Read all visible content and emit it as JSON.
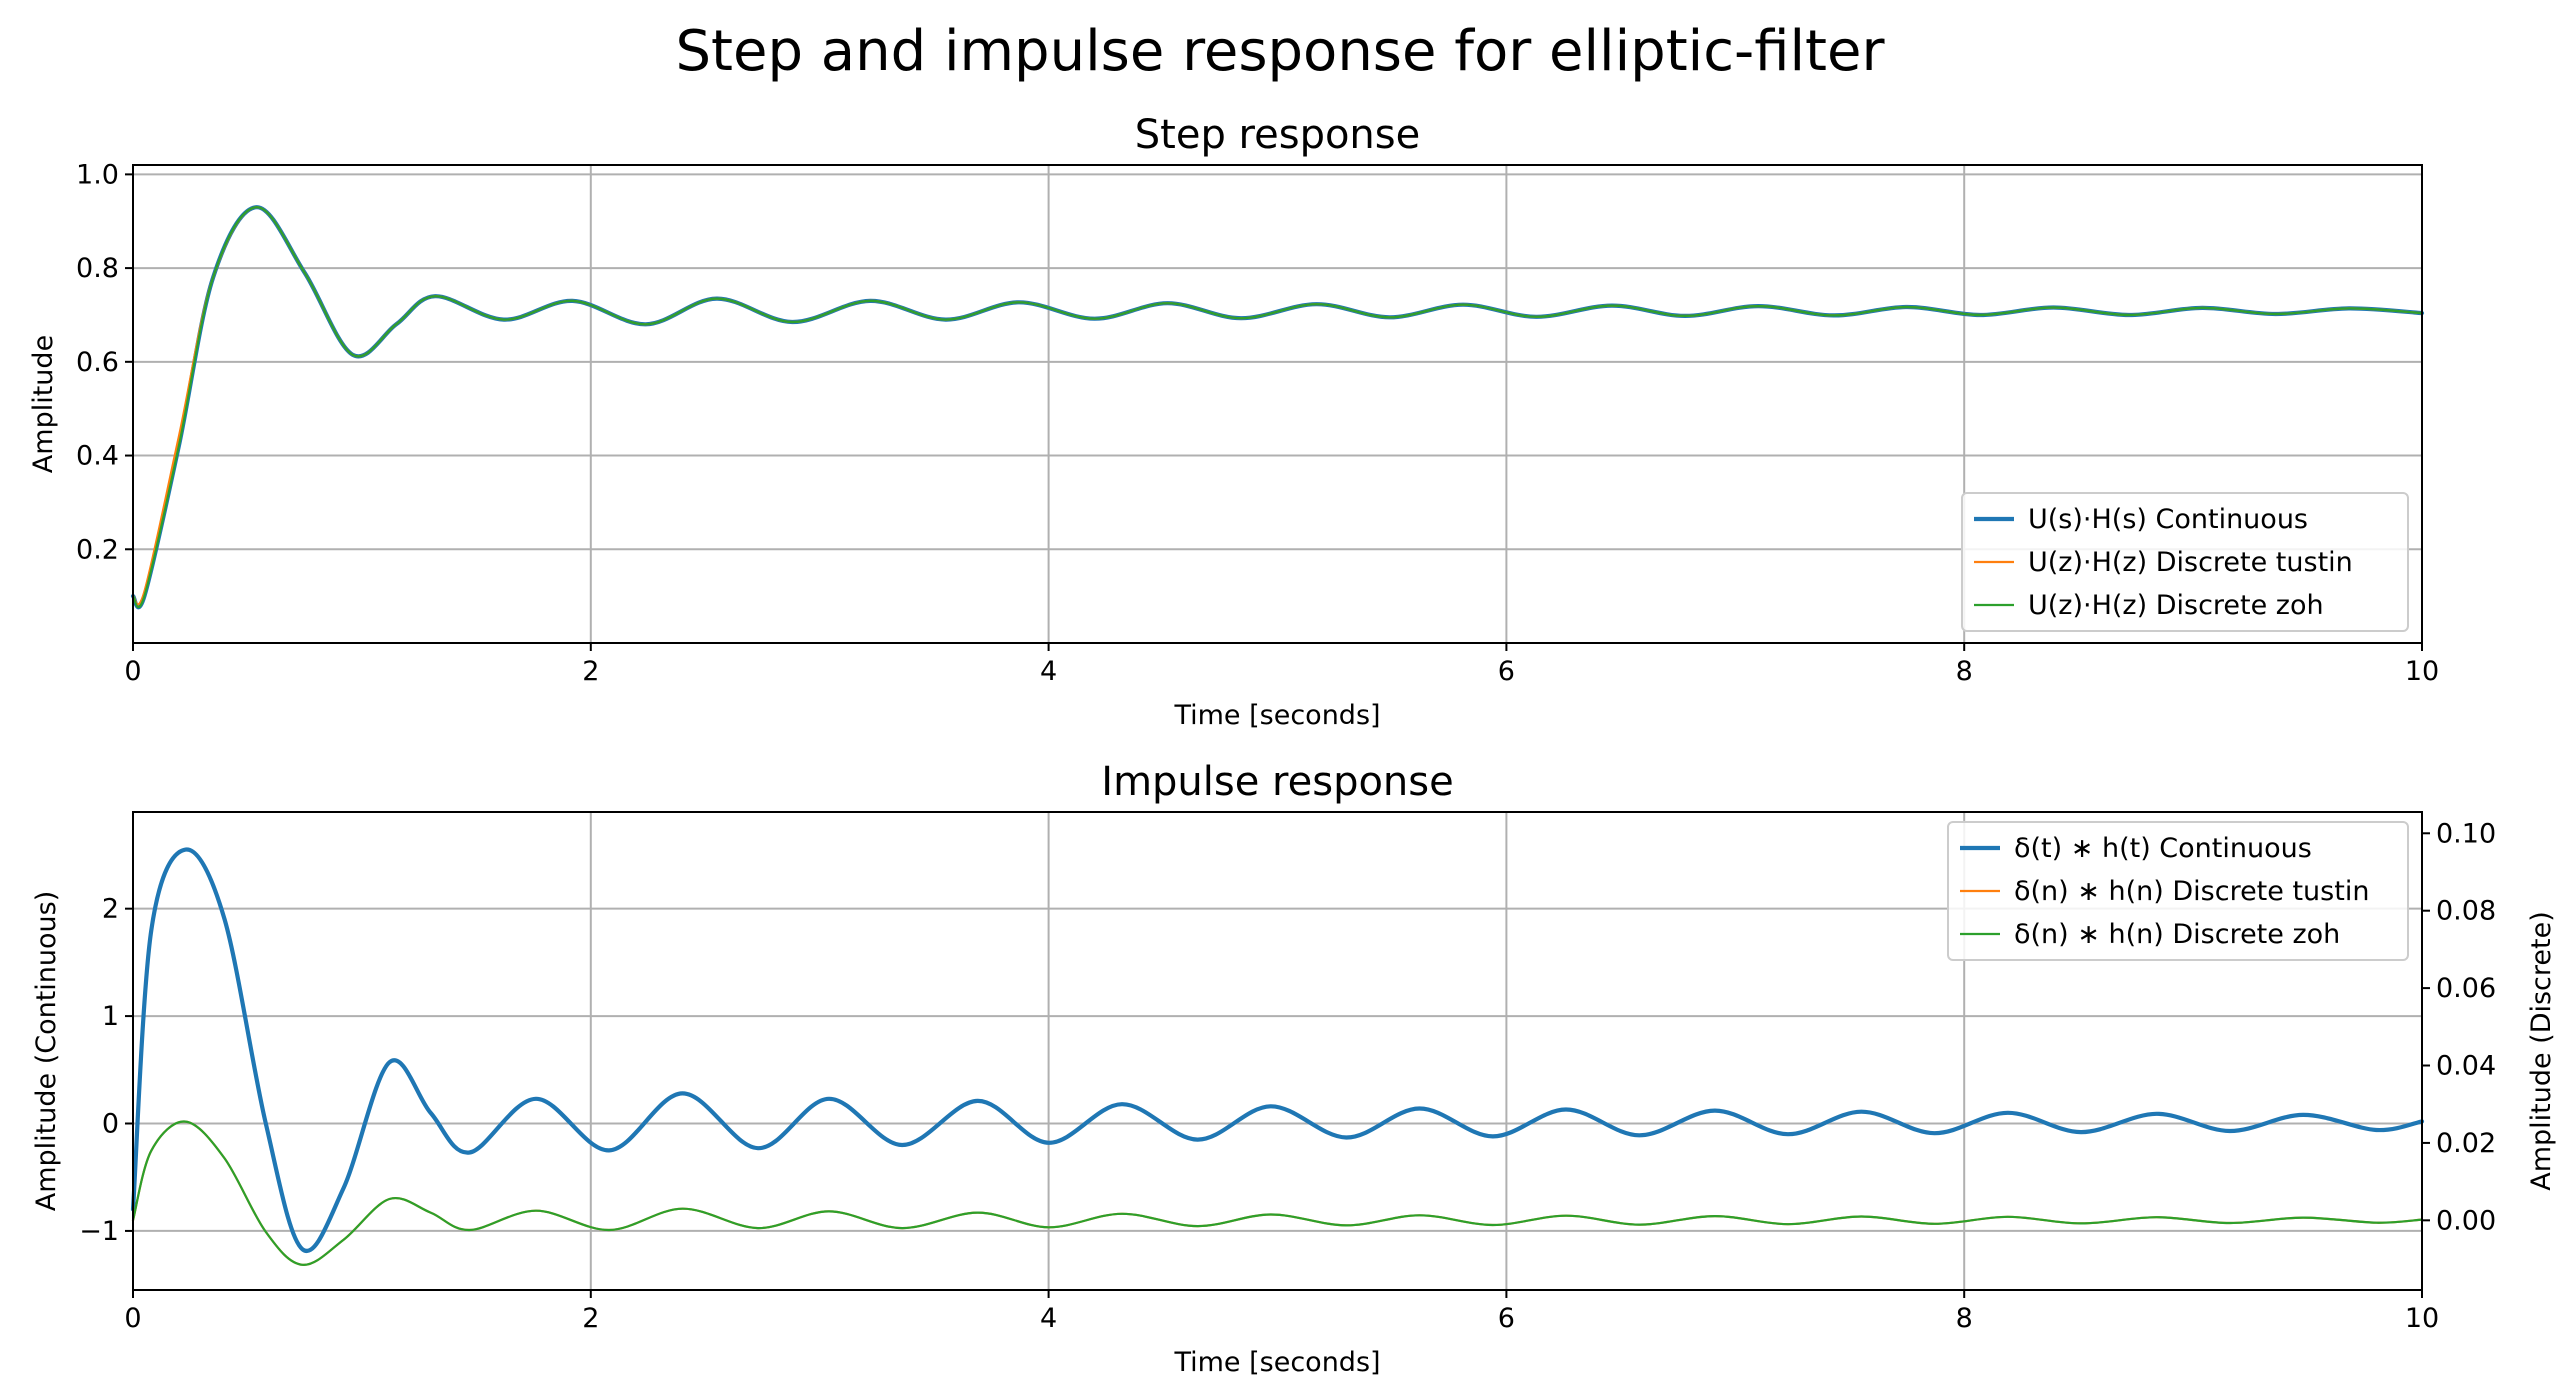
{
  "figure_title": "Step and impulse response for elliptic-filter",
  "colors": {
    "continuous": "#1f77b4",
    "tustin": "#ff7f0e",
    "zoh": "#2ca02c",
    "grid": "#b0b0b0"
  },
  "chart_data": [
    {
      "type": "line",
      "title": "Step response",
      "xlabel": "Time [seconds]",
      "ylabel": "Amplitude",
      "xlim": [
        0,
        10
      ],
      "ylim": [
        0.0,
        1.02
      ],
      "xticks": [
        0,
        2,
        4,
        6,
        8,
        10
      ],
      "yticks": [
        0.2,
        0.4,
        0.6,
        0.8,
        1.0
      ],
      "xtick_labels": [
        "0",
        "2",
        "4",
        "6",
        "8",
        "10"
      ],
      "ytick_labels": [
        "0.2",
        "0.4",
        "0.6",
        "0.8",
        "1.0"
      ],
      "grid": true,
      "legend_position": "lower-right",
      "series": [
        {
          "name": "U(s)·H(s) Continuous",
          "color": "#1f77b4",
          "width": "thick",
          "x": [
            0,
            0.05,
            0.2,
            0.35,
            0.54,
            0.75,
            0.96,
            1.15,
            1.32,
            1.62,
            1.92,
            2.24,
            2.55,
            2.88,
            3.22,
            3.55,
            3.87,
            4.2,
            4.52,
            4.84,
            5.17,
            5.49,
            5.81,
            6.13,
            6.46,
            6.78,
            7.1,
            7.43,
            7.75,
            8.07,
            8.39,
            8.72,
            9.04,
            9.36,
            9.68,
            10
          ],
          "y": [
            0.1,
            0.1,
            0.42,
            0.78,
            0.93,
            0.79,
            0.615,
            0.68,
            0.74,
            0.69,
            0.73,
            0.68,
            0.735,
            0.685,
            0.73,
            0.69,
            0.727,
            0.692,
            0.725,
            0.693,
            0.723,
            0.695,
            0.722,
            0.696,
            0.72,
            0.698,
            0.719,
            0.699,
            0.717,
            0.7,
            0.716,
            0.7,
            0.715,
            0.702,
            0.714,
            0.704
          ]
        },
        {
          "name": "U(z)·H(z) Discrete tustin",
          "color": "#ff7f0e",
          "width": "thin",
          "x": [
            0,
            0.05,
            0.2,
            0.35,
            0.54,
            0.75,
            0.96,
            1.15,
            1.32,
            1.62,
            1.92,
            2.24,
            2.55,
            2.88,
            3.22,
            3.55,
            3.87,
            4.2,
            4.52,
            4.84,
            5.17,
            5.49,
            5.81,
            6.13,
            6.46,
            6.78,
            7.1,
            7.43,
            7.75,
            8.07,
            8.39,
            8.72,
            9.04,
            9.36,
            9.68,
            10
          ],
          "y": [
            0.1,
            0.11,
            0.44,
            0.78,
            0.93,
            0.79,
            0.615,
            0.68,
            0.74,
            0.69,
            0.73,
            0.68,
            0.735,
            0.685,
            0.73,
            0.69,
            0.727,
            0.692,
            0.725,
            0.693,
            0.723,
            0.695,
            0.722,
            0.696,
            0.72,
            0.698,
            0.719,
            0.699,
            0.717,
            0.7,
            0.716,
            0.7,
            0.715,
            0.702,
            0.714,
            0.704
          ]
        },
        {
          "name": "U(z)·H(z) Discrete zoh",
          "color": "#2ca02c",
          "width": "thin",
          "x": [
            0,
            0.05,
            0.2,
            0.35,
            0.54,
            0.75,
            0.96,
            1.15,
            1.32,
            1.62,
            1.92,
            2.24,
            2.55,
            2.88,
            3.22,
            3.55,
            3.87,
            4.2,
            4.52,
            4.84,
            5.17,
            5.49,
            5.81,
            6.13,
            6.46,
            6.78,
            7.1,
            7.43,
            7.75,
            8.07,
            8.39,
            8.72,
            9.04,
            9.36,
            9.68,
            10
          ],
          "y": [
            0.1,
            0.1,
            0.42,
            0.78,
            0.93,
            0.79,
            0.615,
            0.68,
            0.74,
            0.69,
            0.73,
            0.68,
            0.735,
            0.685,
            0.73,
            0.69,
            0.727,
            0.692,
            0.725,
            0.693,
            0.723,
            0.695,
            0.722,
            0.696,
            0.72,
            0.698,
            0.719,
            0.699,
            0.717,
            0.7,
            0.716,
            0.7,
            0.715,
            0.702,
            0.714,
            0.704
          ]
        }
      ]
    },
    {
      "type": "line",
      "title": "Impulse response",
      "xlabel": "Time [seconds]",
      "ylabel": "Amplitude (Continuous)",
      "ylabel_right": "Amplitude (Discrete)",
      "xlim": [
        0,
        10
      ],
      "ylim": [
        -1.55,
        2.9
      ],
      "ylim_right": [
        -0.018,
        0.1055
      ],
      "xticks": [
        0,
        2,
        4,
        6,
        8,
        10
      ],
      "yticks": [
        -1,
        0,
        1,
        2
      ],
      "yticks_right": [
        0.0,
        0.02,
        0.04,
        0.06,
        0.08,
        0.1
      ],
      "xtick_labels": [
        "0",
        "2",
        "4",
        "6",
        "8",
        "10"
      ],
      "ytick_labels": [
        "−1",
        "0",
        "1",
        "2"
      ],
      "ytick_labels_right": [
        "0.00",
        "0.02",
        "0.04",
        "0.06",
        "0.08",
        "0.10"
      ],
      "grid": true,
      "legend_position": "upper-right",
      "series": [
        {
          "name": "δ(t) ∗ h(t) Continuous",
          "color": "#1f77b4",
          "width": "thick",
          "axis": "left",
          "x": [
            0,
            0.08,
            0.23,
            0.4,
            0.58,
            0.74,
            0.92,
            1.12,
            1.3,
            1.47,
            1.76,
            2.08,
            2.4,
            2.73,
            3.04,
            3.36,
            3.69,
            4.0,
            4.32,
            4.65,
            4.97,
            5.3,
            5.62,
            5.94,
            6.26,
            6.58,
            6.91,
            7.23,
            7.55,
            7.87,
            8.19,
            8.51,
            8.84,
            9.16,
            9.48,
            9.8,
            10
          ],
          "y": [
            -0.8,
            1.8,
            2.55,
            1.9,
            0.0,
            -1.17,
            -0.6,
            0.57,
            0.1,
            -0.27,
            0.23,
            -0.25,
            0.28,
            -0.23,
            0.23,
            -0.2,
            0.21,
            -0.18,
            0.18,
            -0.15,
            0.16,
            -0.13,
            0.14,
            -0.12,
            0.13,
            -0.11,
            0.12,
            -0.1,
            0.11,
            -0.09,
            0.1,
            -0.08,
            0.09,
            -0.07,
            0.08,
            -0.06,
            0.02
          ]
        },
        {
          "name": "δ(n) ∗ h(n) Discrete tustin",
          "color": "#ff7f0e",
          "width": "thin",
          "axis": "right",
          "x": [
            0,
            0.08,
            0.23,
            0.4,
            0.58,
            0.74,
            0.92,
            1.12,
            1.3,
            1.47,
            1.76,
            2.08,
            2.4,
            2.73,
            3.04,
            3.36,
            3.69,
            4.0,
            4.32,
            4.65,
            4.97,
            5.3,
            5.62,
            5.94,
            6.26,
            6.58,
            6.91,
            7.23,
            7.55,
            7.87,
            8.19,
            8.51,
            8.84,
            9.16,
            9.48,
            9.8,
            10
          ],
          "y": [
            0.0,
            0.018,
            0.0255,
            0.016,
            -0.003,
            -0.0115,
            -0.005,
            0.0055,
            0.002,
            -0.0025,
            0.0025,
            -0.0025,
            0.003,
            -0.002,
            0.0023,
            -0.002,
            0.002,
            -0.0018,
            0.0017,
            -0.0015,
            0.0015,
            -0.0013,
            0.0013,
            -0.0012,
            0.0012,
            -0.0011,
            0.0011,
            -0.001,
            0.001,
            -0.0009,
            0.0009,
            -0.0008,
            0.0008,
            -0.0007,
            0.0007,
            -0.0006,
            0.0002
          ]
        },
        {
          "name": "δ(n) ∗ h(n) Discrete zoh",
          "color": "#2ca02c",
          "width": "thin",
          "axis": "right",
          "x": [
            0,
            0.08,
            0.23,
            0.4,
            0.58,
            0.74,
            0.92,
            1.12,
            1.3,
            1.47,
            1.76,
            2.08,
            2.4,
            2.73,
            3.04,
            3.36,
            3.69,
            4.0,
            4.32,
            4.65,
            4.97,
            5.3,
            5.62,
            5.94,
            6.26,
            6.58,
            6.91,
            7.23,
            7.55,
            7.87,
            8.19,
            8.51,
            8.84,
            9.16,
            9.48,
            9.8,
            10
          ],
          "y": [
            0.0,
            0.018,
            0.0255,
            0.016,
            -0.003,
            -0.0115,
            -0.005,
            0.0055,
            0.002,
            -0.0025,
            0.0025,
            -0.0025,
            0.003,
            -0.002,
            0.0023,
            -0.002,
            0.002,
            -0.0018,
            0.0017,
            -0.0015,
            0.0015,
            -0.0013,
            0.0013,
            -0.0012,
            0.0012,
            -0.0011,
            0.0011,
            -0.001,
            0.001,
            -0.0009,
            0.0009,
            -0.0008,
            0.0008,
            -0.0007,
            0.0007,
            -0.0006,
            0.0002
          ]
        }
      ]
    }
  ]
}
